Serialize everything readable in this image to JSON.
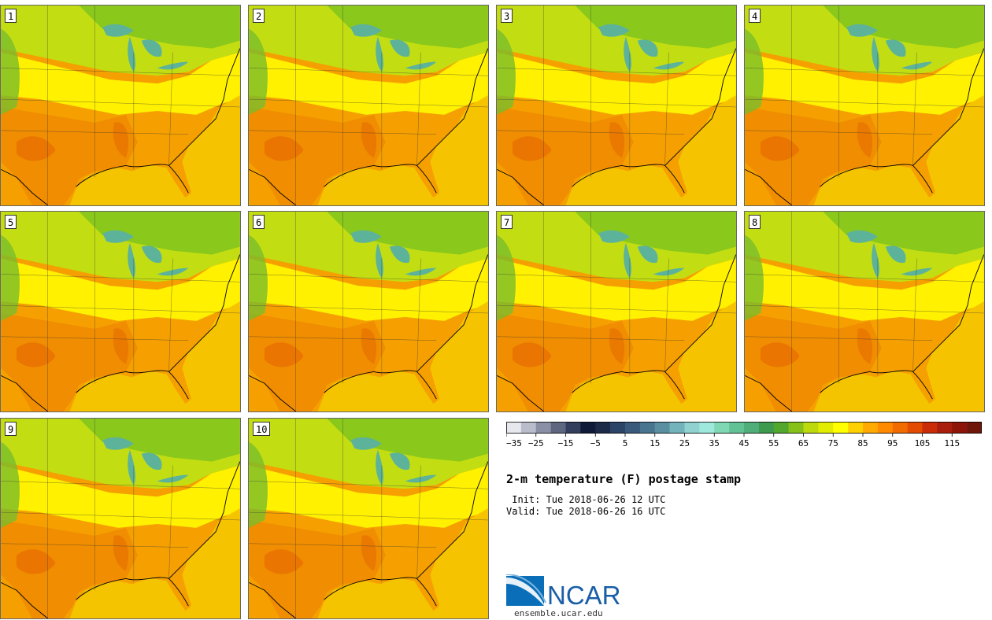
{
  "title": "2-m temperature (F) postage stamp",
  "init_line": " Init: Tue 2018-06-26 12 UTC",
  "valid_line": "Valid: Tue 2018-06-26 16 UTC",
  "logo_text": "NCAR",
  "site": "ensemble.ucar.edu",
  "members": [
    "1",
    "2",
    "3",
    "4",
    "5",
    "6",
    "7",
    "8",
    "9",
    "10"
  ],
  "colorbar": {
    "colors": [
      "#e6e8ee",
      "#b8bccb",
      "#8a8fa6",
      "#5e6680",
      "#333d5c",
      "#0f1a38",
      "#1c2a48",
      "#2c4466",
      "#3a5a7c",
      "#4a7590",
      "#5a8fa2",
      "#73b3bc",
      "#8fd2cf",
      "#9ee8dc",
      "#7fd7b3",
      "#62c296",
      "#4fae7a",
      "#3d9a4e",
      "#52a82f",
      "#86c11a",
      "#bcda0b",
      "#e2ec00",
      "#ffff00",
      "#ffd000",
      "#ffaa00",
      "#ff8a00",
      "#f26b00",
      "#e24b00",
      "#c92c06",
      "#a81d0b",
      "#8d1409",
      "#6e160a"
    ],
    "ticks": [
      "-35",
      "-25",
      "-15",
      "-5",
      "5",
      "15",
      "25",
      "35",
      "45",
      "55",
      "65",
      "75",
      "85",
      "95",
      "105",
      "115"
    ]
  }
}
